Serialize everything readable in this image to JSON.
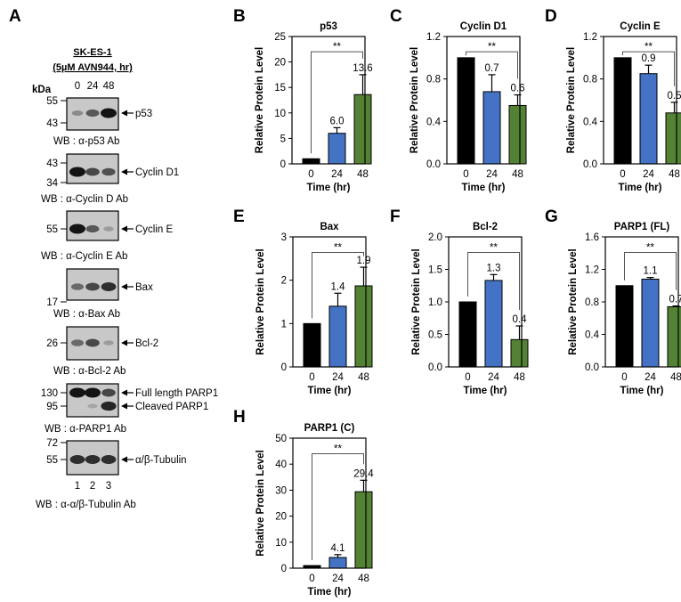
{
  "panel_a": {
    "letter": "A",
    "cell_line": "SK-ES-1",
    "treatment": "(5µM AVN944, hr)",
    "kda": "kDa",
    "lanes": [
      "0",
      "24",
      "48"
    ],
    "lane_numbers": [
      "1",
      "2",
      "3"
    ],
    "blots": [
      {
        "markers": [
          "55",
          "43"
        ],
        "targets": [
          "p53"
        ],
        "wb": "WB : α-p53 Ab",
        "bands": [
          [
            0.3,
            0.6,
            1.0
          ]
        ]
      },
      {
        "markers": [
          "43",
          "34"
        ],
        "targets": [
          "Cyclin D1"
        ],
        "wb": "WB : α-Cyclin D Ab",
        "bands": [
          [
            1.0,
            0.7,
            0.65
          ]
        ]
      },
      {
        "markers": [
          "55"
        ],
        "targets": [
          "Cyclin E"
        ],
        "wb": "WB : α-Cyclin E Ab",
        "bands": [
          [
            1.0,
            0.6,
            0.2
          ]
        ]
      },
      {
        "markers": [
          "17"
        ],
        "targets": [
          "Bax"
        ],
        "wb": "WB : α-Bax Ab",
        "bands": [
          [
            0.5,
            0.7,
            0.85
          ]
        ]
      },
      {
        "markers": [
          "26"
        ],
        "targets": [
          "Bcl-2"
        ],
        "wb": "WB : α-Bcl-2 Ab",
        "bands": [
          [
            0.5,
            0.7,
            0.2
          ]
        ]
      },
      {
        "markers": [
          "130",
          "95"
        ],
        "targets": [
          "Full length PARP1",
          "Cleaved PARP1"
        ],
        "wb": "WB : α-PARP1 Ab",
        "bands": [
          [
            1.0,
            1.0,
            0.7
          ],
          [
            0.0,
            0.15,
            0.9
          ]
        ]
      },
      {
        "markers": [
          "72",
          "55"
        ],
        "targets": [
          "α/β-Tubulin"
        ],
        "wb": "WB : α-α/β-Tubulin Ab",
        "bands": [
          [
            0.85,
            0.85,
            0.85
          ]
        ]
      }
    ]
  },
  "colors": {
    "0": "#000000",
    "24": "#4472c4",
    "48": "#548235"
  },
  "chart_data": [
    {
      "panel": "B",
      "type": "bar",
      "title": "p53",
      "ylabel": "Relative Protein Level",
      "xlabel": "Time (hr)",
      "categories": [
        "0",
        "24",
        "48"
      ],
      "values": [
        1,
        6.0,
        13.6
      ],
      "errors": [
        0,
        1.1,
        3.9
      ],
      "labels": [
        "",
        "6.0",
        "13.6"
      ],
      "ylim": [
        0,
        25
      ],
      "yticks": [
        "0",
        "5",
        "10",
        "15",
        "20",
        "25"
      ],
      "significance": "**"
    },
    {
      "panel": "C",
      "type": "bar",
      "title": "Cyclin D1",
      "ylabel": "Relative Protein Level",
      "xlabel": "Time (hr)",
      "categories": [
        "0",
        "24",
        "48"
      ],
      "values": [
        1,
        0.68,
        0.55
      ],
      "errors": [
        0,
        0.16,
        0.1
      ],
      "labels": [
        "",
        "0.7",
        "0.6"
      ],
      "ylim": [
        0,
        1.2
      ],
      "yticks": [
        "0.0",
        "0.4",
        "0.8",
        "1.2"
      ],
      "significance": "**"
    },
    {
      "panel": "D",
      "type": "bar",
      "title": "Cyclin E",
      "ylabel": "Relative Protein Level",
      "xlabel": "Time (hr)",
      "categories": [
        "0",
        "24",
        "48"
      ],
      "values": [
        1,
        0.85,
        0.48
      ],
      "errors": [
        0,
        0.08,
        0.1
      ],
      "labels": [
        "",
        "0.9",
        "0.5"
      ],
      "ylim": [
        0,
        1.2
      ],
      "yticks": [
        "0.0",
        "0.4",
        "0.8",
        "1.2"
      ],
      "significance": "**"
    },
    {
      "panel": "E",
      "type": "bar",
      "title": "Bax",
      "ylabel": "Relative Protein Level",
      "xlabel": "Time (hr)",
      "categories": [
        "0",
        "24",
        "48"
      ],
      "values": [
        1,
        1.4,
        1.87
      ],
      "errors": [
        0,
        0.3,
        0.43
      ],
      "labels": [
        "",
        "1.4",
        "1.9"
      ],
      "ylim": [
        0,
        3
      ],
      "yticks": [
        "0",
        "1",
        "2",
        "3"
      ],
      "significance": "**"
    },
    {
      "panel": "F",
      "type": "bar",
      "title": "Bcl-2",
      "ylabel": "Relative Protein Level",
      "xlabel": "Time (hr)",
      "categories": [
        "0",
        "24",
        "48"
      ],
      "values": [
        1,
        1.33,
        0.42
      ],
      "errors": [
        0,
        0.09,
        0.21
      ],
      "labels": [
        "",
        "1.3",
        "0.4"
      ],
      "ylim": [
        0,
        2.0
      ],
      "yticks": [
        "0.0",
        "0.5",
        "1.0",
        "1.5",
        "2.0"
      ],
      "significance": "**"
    },
    {
      "panel": "G",
      "type": "bar",
      "title": "PARP1 (FL)",
      "ylabel": "Relative Protein Level",
      "xlabel": "Time (hr)",
      "categories": [
        "0",
        "24",
        "48"
      ],
      "values": [
        1,
        1.08,
        0.74
      ],
      "errors": [
        0,
        0.02,
        0.01
      ],
      "labels": [
        "",
        "1.1",
        "0.7"
      ],
      "ylim": [
        0,
        1.6
      ],
      "yticks": [
        "0.0",
        "0.4",
        "0.8",
        "1.2",
        "1.6"
      ],
      "significance": "**"
    },
    {
      "panel": "H",
      "type": "bar",
      "title": "PARP1 (C)",
      "ylabel": "Relative Protein Level",
      "xlabel": "Time (hr)",
      "categories": [
        "0",
        "24",
        "48"
      ],
      "values": [
        1,
        4.1,
        29.4
      ],
      "errors": [
        0,
        1.1,
        4.4
      ],
      "labels": [
        "",
        "4.1",
        "29.4"
      ],
      "ylim": [
        0,
        50
      ],
      "yticks": [
        "0",
        "10",
        "20",
        "30",
        "40",
        "50"
      ],
      "significance": "**"
    }
  ]
}
